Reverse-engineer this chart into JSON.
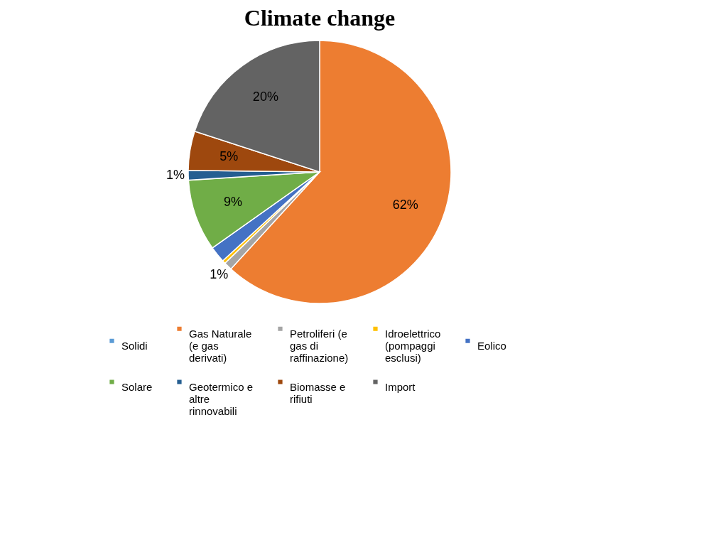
{
  "chart_data": {
    "type": "pie",
    "title": "Climate change",
    "categories": [
      "Solidi",
      "Gas Naturale (e gas derivati)",
      "Petroliferi (e gas di raffinazione)",
      "Idroelettrico (pompaggi esclusi)",
      "Eolico",
      "Solare",
      "Geotermico e altre rinnovabili",
      "Biomasse e rifiuti",
      "Import"
    ],
    "values": [
      0,
      61.8,
      1,
      0.4,
      2,
      8.8,
      1.2,
      4.8,
      20
    ],
    "value_labels": [
      null,
      "62%",
      "1%",
      null,
      null,
      "9%",
      "1%",
      "5%",
      "20%"
    ],
    "colors": [
      "#5b9bd5",
      "#ed7d31",
      "#a5a5a5",
      "#ffc000",
      "#4472c4",
      "#70ad47",
      "#255e91",
      "#9e480e",
      "#636363"
    ],
    "legend": "bottom"
  }
}
